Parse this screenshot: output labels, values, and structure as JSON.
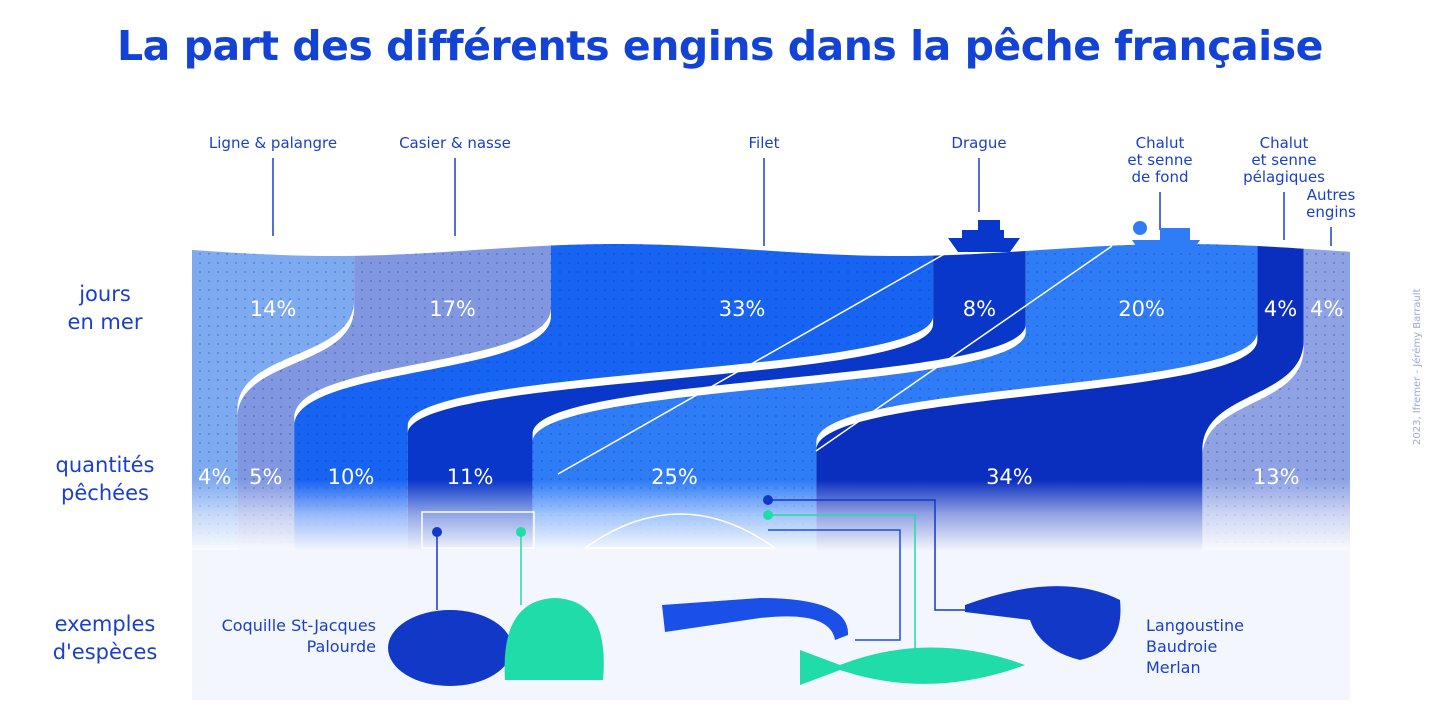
{
  "title": "La part des différents engins dans la pêche française",
  "row_labels": {
    "days": "jours\nen mer",
    "catch": "quantités\npêchées",
    "species": "exemples\nd'espèces"
  },
  "credit": "2023, Ifremer - Jérémy Barrault",
  "species_left": "Coquille St-Jacques\nPalourde",
  "species_right": "Langoustine\nBaudroie\nMerlan",
  "chart_data": {
    "type": "sankey",
    "categories": [
      "Ligne & palangre",
      "Casier & nasse",
      "Filet",
      "Drague",
      "Chalut et senne de fond",
      "Chalut et senne pélagiques",
      "Autres engins"
    ],
    "series": [
      {
        "name": "jours en mer",
        "values": [
          14,
          17,
          33,
          8,
          20,
          4,
          4
        ]
      },
      {
        "name": "quantités pêchées",
        "values": [
          4,
          5,
          10,
          11,
          25,
          34,
          13
        ]
      }
    ],
    "unit": "%",
    "colors": [
      "#7eaaf0",
      "#8197e0",
      "#1763f2",
      "#0837c9",
      "#2e7cf6",
      "#0a2fbf",
      "#8fa3e4"
    ],
    "accent_green": "#1fdca8"
  }
}
